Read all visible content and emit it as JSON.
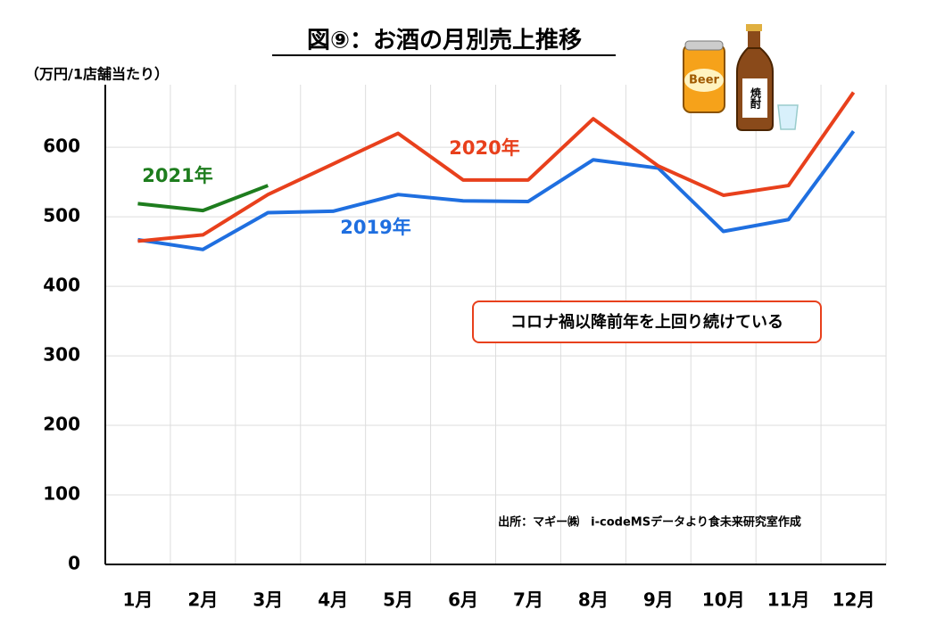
{
  "chart_data": {
    "type": "line",
    "title": "図⑨：お酒の月別売上推移",
    "y_axis_label": "（万円/1店舗当たり）",
    "categories": [
      "1月",
      "2月",
      "3月",
      "4月",
      "5月",
      "6月",
      "7月",
      "8月",
      "9月",
      "10月",
      "11月",
      "12月"
    ],
    "series": [
      {
        "name": "2019年",
        "color": "#1f6fe0",
        "values": [
          467,
          453,
          506,
          508,
          532,
          523,
          522,
          582,
          570,
          479,
          496,
          623
        ]
      },
      {
        "name": "2020年",
        "color": "#e8401c",
        "values": [
          465,
          474,
          532,
          576,
          620,
          553,
          553,
          641,
          573,
          531,
          545,
          679
        ]
      },
      {
        "name": "2021年",
        "color": "#1e7d1e",
        "values": [
          519,
          509,
          545,
          null,
          null,
          null,
          null,
          null,
          null,
          null,
          null,
          null
        ]
      }
    ],
    "ylim": [
      0,
      690
    ],
    "yticks": [
      0,
      100,
      200,
      300,
      400,
      500,
      600
    ],
    "grid": true,
    "annotation": "コロナ禍以降前年を上回り続けている",
    "source": "出所：マギー㈱　i-codeMSデータより食未来研究室作成",
    "illustration_labels": [
      "Beer",
      "焼酎"
    ]
  }
}
